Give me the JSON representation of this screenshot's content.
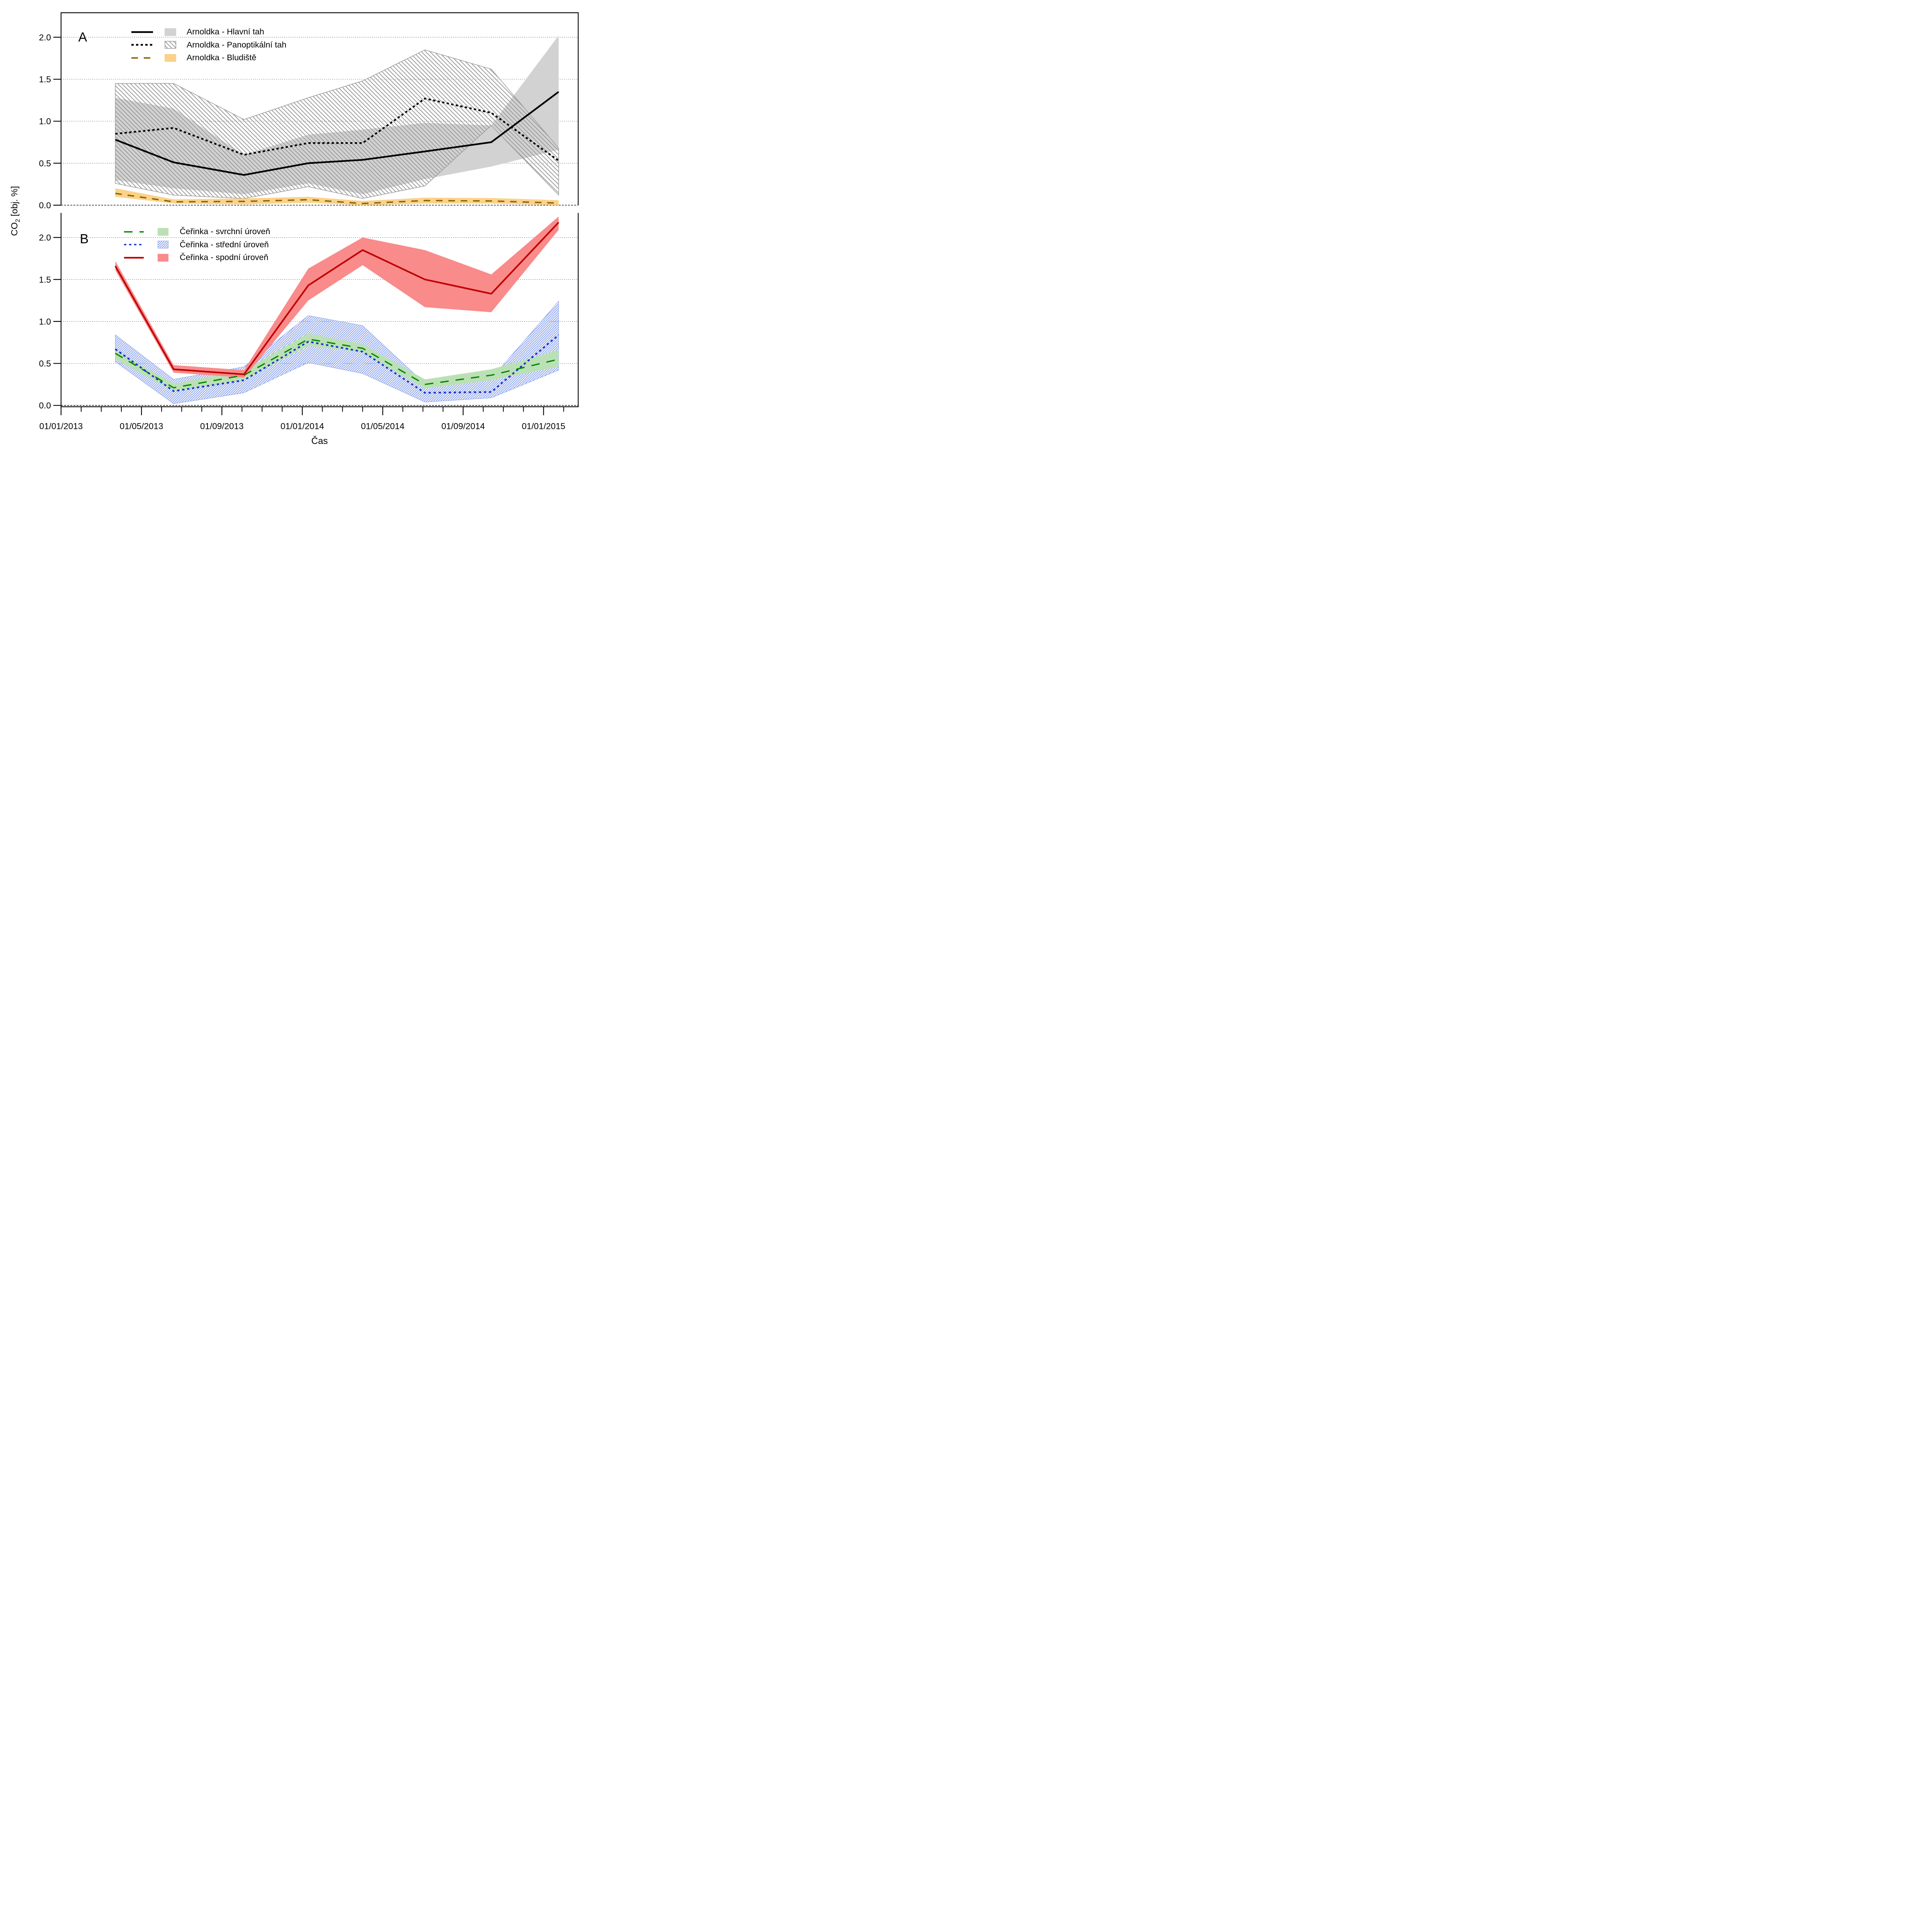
{
  "figure": {
    "y_label": {
      "main": "CO",
      "sub": "2",
      "units": "  [obj. %]"
    },
    "x_label": "Čas",
    "panel_letters": [
      "A",
      "B"
    ]
  },
  "axes": {
    "y_ticks": {
      "values": [
        0,
        0.5,
        1.0,
        1.5,
        2.0
      ],
      "labels": [
        "0.0",
        "0.5",
        "1.0",
        "1.5",
        "2.0"
      ]
    },
    "ylim": [
      0,
      2.3
    ],
    "x_major_ticks": {
      "months": [
        0,
        4,
        8,
        12,
        16,
        20,
        24
      ],
      "labels": [
        "01/01/2013",
        "01/05/2013",
        "01/09/2013",
        "01/01/2014",
        "01/05/2014",
        "01/09/2014",
        "01/01/2015"
      ]
    },
    "x_minor_tick_months": [
      1,
      2,
      3,
      5,
      6,
      7,
      9,
      10,
      11,
      13,
      14,
      15,
      17,
      18,
      19,
      21,
      22,
      23,
      25
    ],
    "xlim_months": [
      0,
      25.7
    ],
    "grid": "dotted horizontal at every 0.5"
  },
  "colors": {
    "line_black": "#000000",
    "line_brown": "#8B6508",
    "line_green": "#008B00",
    "line_blue": "#1B35CE",
    "line_red": "#C00000",
    "band_gray": "#D2D2D2",
    "hatch_gray": "#9A9A9A",
    "band_orange": "#FBD288",
    "band_green": "#BCE0B6",
    "hatch_blue": "#8FA6EC",
    "band_red": "#F98B8B"
  },
  "legend_a": {
    "rows": [
      {
        "label": "Arnoldka - Hlavní tah"
      },
      {
        "label": "Arnoldka - Panoptikální tah"
      },
      {
        "label": "Arnoldka - Bludiště"
      }
    ]
  },
  "legend_b": {
    "rows": [
      {
        "label": "Čeřinka - svrchní úroveň"
      },
      {
        "label": "Čeřinka - střední úroveň"
      },
      {
        "label": "Čeřinka - spodní úroveň"
      }
    ]
  },
  "chart_data": {
    "type": "line",
    "x_unit": "months since 01/01/2013",
    "x_months": [
      2.7,
      5.6,
      9.1,
      12.3,
      15.0,
      18.1,
      21.4,
      24.75
    ],
    "ylabel": "CO2 [obj. %]",
    "xlabel": "Čas",
    "panels": [
      {
        "letter": "A",
        "series": [
          {
            "name": "Arnoldka - Hlavní tah",
            "line": "solid",
            "color": "line_black",
            "band": {
              "style": "solid",
              "color": "band_gray"
            },
            "values": [
              0.78,
              0.51,
              0.36,
              0.5,
              0.54,
              0.64,
              0.75,
              1.35
            ],
            "band_hi": [
              1.28,
              1.15,
              0.6,
              0.84,
              0.9,
              0.98,
              0.95,
              2.02
            ],
            "band_lo": [
              0.3,
              0.2,
              0.13,
              0.26,
              0.13,
              0.31,
              0.46,
              0.66
            ]
          },
          {
            "name": "Arnoldka - Panoptikální tah",
            "line": "dotted",
            "color": "line_black",
            "band": {
              "style": "hatch-backslash",
              "color": "hatch_gray"
            },
            "values": [
              0.85,
              0.92,
              0.6,
              0.74,
              0.74,
              1.27,
              1.1,
              0.53
            ],
            "band_hi": [
              1.45,
              1.45,
              1.02,
              1.28,
              1.48,
              1.85,
              1.62,
              0.68
            ],
            "band_lo": [
              0.26,
              0.12,
              0.08,
              0.22,
              0.08,
              0.23,
              0.95,
              0.12
            ]
          },
          {
            "name": "Arnoldka - Bludiště",
            "line": "dashed",
            "color": "line_brown",
            "band": {
              "style": "solid",
              "color": "band_orange"
            },
            "values": [
              0.14,
              0.04,
              0.045,
              0.065,
              0.02,
              0.055,
              0.05,
              0.025
            ],
            "band_hi": [
              0.2,
              0.07,
              0.08,
              0.1,
              0.05,
              0.09,
              0.085,
              0.06
            ],
            "band_lo": [
              0.1,
              0.02,
              0.01,
              0.03,
              0.0,
              0.02,
              0.02,
              0.0
            ]
          }
        ]
      },
      {
        "letter": "B",
        "series": [
          {
            "name": "Čeřinka - svrchní úroveň",
            "line": "long-dash",
            "color": "line_green",
            "band": {
              "style": "solid",
              "color": "band_green"
            },
            "values": [
              0.62,
              0.21,
              0.36,
              0.79,
              0.68,
              0.25,
              0.36,
              0.55
            ],
            "band_hi": [
              0.65,
              0.26,
              0.42,
              0.86,
              0.73,
              0.31,
              0.43,
              0.66
            ],
            "band_lo": [
              0.55,
              0.17,
              0.3,
              0.71,
              0.63,
              0.2,
              0.3,
              0.46
            ]
          },
          {
            "name": "Čeřinka - střední úroveň",
            "line": "dotted",
            "color": "line_blue",
            "band": {
              "style": "hatch-slash",
              "color": "hatch_blue"
            },
            "values": [
              0.67,
              0.17,
              0.3,
              0.76,
              0.64,
              0.15,
              0.16,
              0.84
            ],
            "band_hi": [
              0.84,
              0.31,
              0.46,
              1.07,
              0.95,
              0.26,
              0.32,
              1.24
            ],
            "band_lo": [
              0.52,
              0.02,
              0.15,
              0.51,
              0.38,
              0.04,
              0.09,
              0.42
            ]
          },
          {
            "name": "Čeřinka - spodní úroveň",
            "line": "solid",
            "color": "line_red",
            "band": {
              "style": "solid",
              "color": "band_red"
            },
            "values": [
              1.66,
              0.43,
              0.37,
              1.43,
              1.85,
              1.5,
              1.33,
              2.18
            ],
            "band_hi": [
              1.72,
              0.48,
              0.42,
              1.63,
              2.0,
              1.85,
              1.56,
              2.25
            ],
            "band_lo": [
              1.61,
              0.39,
              0.33,
              1.25,
              1.67,
              1.17,
              1.11,
              2.09
            ]
          }
        ]
      }
    ]
  }
}
